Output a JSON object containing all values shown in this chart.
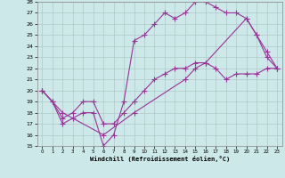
{
  "xlabel": "Windchill (Refroidissement éolien,°C)",
  "bg_color": "#cde8e8",
  "grid_color": "#b0c8c8",
  "line_color": "#993399",
  "xlim": [
    -0.5,
    23.5
  ],
  "ylim": [
    15,
    28
  ],
  "xticks": [
    0,
    1,
    2,
    3,
    4,
    5,
    6,
    7,
    8,
    9,
    10,
    11,
    12,
    13,
    14,
    15,
    16,
    17,
    18,
    19,
    20,
    21,
    22,
    23
  ],
  "yticks": [
    15,
    16,
    17,
    18,
    19,
    20,
    21,
    22,
    23,
    24,
    25,
    26,
    27,
    28
  ],
  "line1_x": [
    0,
    1,
    2,
    3,
    4,
    5,
    6,
    7,
    8,
    9,
    10,
    11,
    12,
    13,
    14,
    15,
    16,
    17,
    18,
    19,
    20,
    21,
    22,
    23
  ],
  "line1_y": [
    20,
    19,
    17,
    17.5,
    18,
    18,
    15,
    16,
    19,
    24.5,
    25,
    26,
    27,
    26.5,
    27,
    28,
    28,
    27.5,
    27,
    27,
    26.5,
    25,
    23,
    22
  ],
  "line2_x": [
    0,
    1,
    2,
    3,
    4,
    5,
    6,
    7,
    8,
    9,
    10,
    11,
    12,
    13,
    14,
    15,
    16,
    17,
    18,
    19,
    20,
    21,
    22,
    23
  ],
  "line2_y": [
    20,
    19,
    17.5,
    18,
    19,
    19,
    17,
    17,
    18,
    19,
    20,
    21,
    21.5,
    22,
    22,
    22.5,
    22.5,
    22,
    21,
    21.5,
    21.5,
    21.5,
    22,
    22
  ],
  "line3_x": [
    0,
    2,
    6,
    9,
    14,
    15,
    16,
    20,
    21,
    22,
    23
  ],
  "line3_y": [
    20,
    18,
    16,
    18,
    21,
    22,
    22.5,
    26.5,
    25,
    23.5,
    22
  ]
}
